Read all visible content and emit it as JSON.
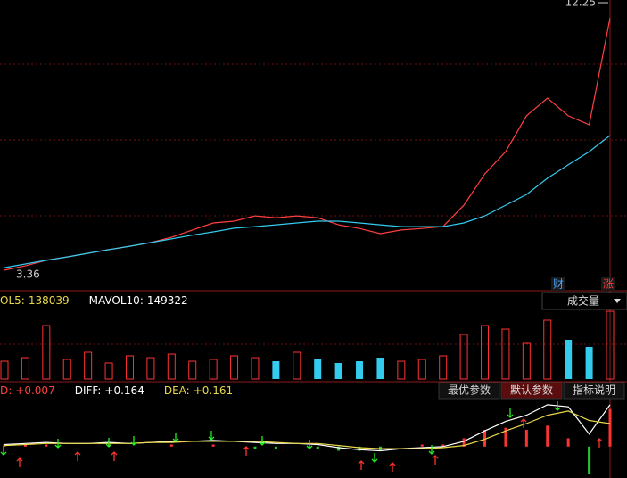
{
  "chart_data": [
    {
      "type": "line",
      "max_label": 12.25,
      "min_label": 3.36,
      "ylim": [
        3.36,
        12.25
      ],
      "series": [
        {
          "name": "close",
          "color": "#ff4040",
          "values": [
            3.51,
            3.65,
            3.83,
            3.94,
            4.06,
            4.18,
            4.29,
            4.41,
            4.58,
            4.82,
            5.05,
            5.11,
            5.28,
            5.22,
            5.28,
            5.22,
            4.99,
            4.87,
            4.7,
            4.82,
            4.87,
            4.93,
            5.63,
            6.65,
            7.38,
            8.55,
            9.13,
            8.55,
            8.26,
            11.75
          ]
        },
        {
          "name": "MA",
          "color": "#33ccee",
          "values": [
            3.59,
            3.71,
            3.83,
            3.94,
            4.06,
            4.18,
            4.29,
            4.41,
            4.53,
            4.65,
            4.76,
            4.88,
            4.93,
            4.99,
            5.05,
            5.11,
            5.11,
            5.05,
            4.99,
            4.93,
            4.93,
            4.93,
            5.05,
            5.28,
            5.63,
            5.98,
            6.51,
            6.95,
            7.38,
            7.91
          ]
        }
      ],
      "badges": [
        "财",
        "涨"
      ]
    },
    {
      "type": "bar",
      "header": [
        {
          "label": "OL5:",
          "value": 138039
        },
        {
          "label": "MAVOL10:",
          "value": 149322
        }
      ],
      "dropdown": "成交量",
      "ylim": [
        0,
        400000
      ],
      "values": [
        100000,
        120000,
        300000,
        110000,
        150000,
        90000,
        130000,
        120000,
        140000,
        100000,
        110000,
        130000,
        120000,
        100000,
        150000,
        110000,
        90000,
        100000,
        120000,
        100000,
        110000,
        130000,
        250000,
        300000,
        280000,
        200000,
        330000,
        220000,
        180000,
        380000
      ]
    },
    {
      "type": "macd",
      "header": [
        {
          "label": "D:",
          "value": "+0.007"
        },
        {
          "label": "DIFF:",
          "value": "+0.164"
        },
        {
          "label": "DEA:",
          "value": "+0.161"
        }
      ],
      "buttons": [
        "最优参数",
        "默认参数",
        "指标说明"
      ],
      "ylim": [
        -0.3,
        0.45
      ],
      "diff": [
        0.02,
        0.03,
        0.04,
        0.03,
        0.03,
        0.04,
        0.03,
        0.04,
        0.05,
        0.05,
        0.06,
        0.05,
        0.04,
        0.03,
        0.03,
        0.02,
        -0.01,
        -0.03,
        -0.04,
        -0.02,
        -0.01,
        0.0,
        0.05,
        0.15,
        0.24,
        0.3,
        0.4,
        0.38,
        0.12,
        0.4
      ],
      "dea": [
        0.01,
        0.02,
        0.03,
        0.03,
        0.03,
        0.03,
        0.03,
        0.04,
        0.04,
        0.05,
        0.05,
        0.05,
        0.05,
        0.04,
        0.03,
        0.03,
        0.01,
        -0.01,
        -0.02,
        -0.02,
        -0.02,
        -0.01,
        0.01,
        0.07,
        0.15,
        0.22,
        0.3,
        0.34,
        0.25,
        0.22
      ],
      "hist": [
        0.02,
        0.02,
        0.02,
        0,
        0,
        0.02,
        0,
        0,
        0.02,
        0,
        0.02,
        0,
        -0.02,
        -0.02,
        0,
        -0.02,
        -0.04,
        -0.04,
        -0.04,
        0,
        0.02,
        0.02,
        0.08,
        0.16,
        0.18,
        0.16,
        0.2,
        0.08,
        -0.26,
        0.36
      ]
    }
  ]
}
